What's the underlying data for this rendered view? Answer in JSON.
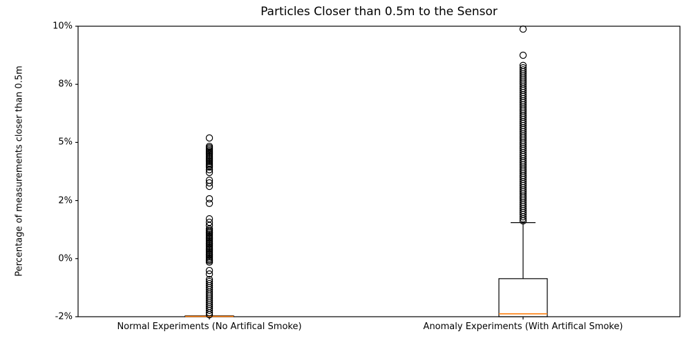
{
  "chart_data": {
    "type": "boxplot",
    "title": "Particles Closer than 0.5m to the Sensor",
    "xlabel": "",
    "ylabel": "Percentage of measurements closer than 0.5m",
    "legend": "none",
    "grid": false,
    "tick_spacing": "uniform-pixels-uneven-values",
    "y_ticks": [
      {
        "value": -2,
        "label": "-2%"
      },
      {
        "value": 0,
        "label": "0%"
      },
      {
        "value": 2,
        "label": "2%"
      },
      {
        "value": 5,
        "label": "5%"
      },
      {
        "value": 8,
        "label": "8%"
      },
      {
        "value": 10,
        "label": "10%"
      }
    ],
    "colors": {
      "box_edge": "#000000",
      "median": "#ff7f0e",
      "axis": "#000000",
      "outlier_edge": "#000000",
      "background": "#ffffff"
    },
    "groups": [
      {
        "label": "Normal Experiments (No Artifical Smoke)",
        "box": {
          "whisker_low": -2.0,
          "q1": -2.0,
          "median": -1.99,
          "q3": -1.97,
          "whisker_high": -1.97
        },
        "outliers": [
          5.23,
          4.8,
          4.73,
          4.66,
          4.59,
          4.52,
          4.45,
          4.38,
          4.3,
          4.23,
          4.16,
          4.09,
          4.02,
          3.94,
          3.87,
          3.8,
          3.73,
          3.59,
          3.45,
          3.05,
          2.91,
          2.73,
          2.09,
          1.9,
          1.37,
          1.25,
          1.14,
          1.02,
          0.97,
          0.92,
          0.88,
          0.83,
          0.78,
          0.73,
          0.69,
          0.64,
          0.59,
          0.54,
          0.5,
          0.45,
          0.4,
          0.35,
          0.31,
          0.26,
          0.21,
          0.16,
          0.12,
          0.07,
          0.02,
          -0.03,
          -0.07,
          -0.12,
          -0.41,
          -0.53,
          -0.72,
          -0.79,
          -0.86,
          -0.93,
          -1.0,
          -1.07,
          -1.15,
          -1.22,
          -1.29,
          -1.36,
          -1.43,
          -1.5,
          -1.57,
          -1.64,
          -1.71,
          -1.78,
          -1.86,
          -1.93
        ]
      },
      {
        "label": "Anomaly Experiments (With Artifical Smoke)",
        "box": {
          "whisker_low": -2.0,
          "q1": -2.0,
          "median": -1.9,
          "q3": -0.69,
          "whisker_high": 1.24
        },
        "outliers": [
          9.9,
          9.0,
          8.65,
          8.57,
          8.5,
          8.43,
          8.36,
          8.29,
          8.22,
          8.15,
          8.08,
          8.01,
          7.9,
          7.79,
          7.69,
          7.58,
          7.47,
          7.37,
          7.26,
          7.15,
          7.05,
          6.94,
          6.83,
          6.72,
          6.62,
          6.51,
          6.4,
          6.3,
          6.19,
          6.08,
          5.98,
          5.87,
          5.76,
          5.66,
          5.55,
          5.44,
          5.33,
          5.23,
          5.12,
          5.01,
          4.91,
          4.8,
          4.7,
          4.59,
          4.48,
          4.37,
          4.27,
          4.16,
          4.05,
          3.95,
          3.84,
          3.73,
          3.62,
          3.52,
          3.41,
          3.3,
          3.2,
          3.09,
          2.98,
          2.87,
          2.77,
          2.66,
          2.55,
          2.45,
          2.34,
          2.23,
          2.13,
          2.02,
          1.94,
          1.87,
          1.8,
          1.73,
          1.66,
          1.59,
          1.52,
          1.44,
          1.37,
          1.3
        ]
      }
    ]
  }
}
